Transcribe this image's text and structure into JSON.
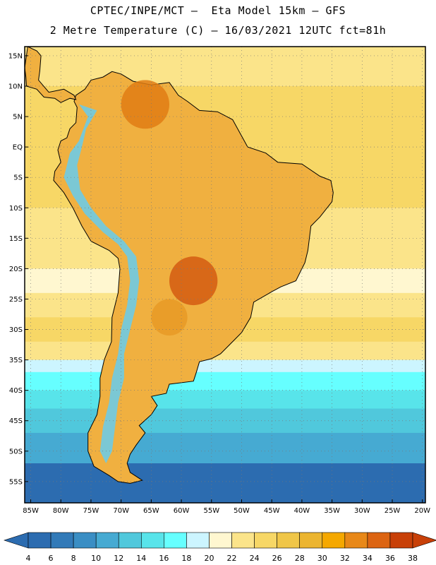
{
  "header": {
    "line1": "CPTEC/INPE/MCT –  Eta Model 15km – GFS",
    "line2": "2 Metre Temperature (C) – 16/03/2021 12UTC fct=81h"
  },
  "map": {
    "lon_range": [
      -86,
      -19.5
    ],
    "lat_range": [
      -58.5,
      16.5
    ],
    "lat_ticks": [
      {
        "value": 15,
        "label": "15N"
      },
      {
        "value": 10,
        "label": "10N"
      },
      {
        "value": 5,
        "label": "5N"
      },
      {
        "value": 0,
        "label": "EQ"
      },
      {
        "value": -5,
        "label": "5S"
      },
      {
        "value": -10,
        "label": "10S"
      },
      {
        "value": -15,
        "label": "15S"
      },
      {
        "value": -20,
        "label": "20S"
      },
      {
        "value": -25,
        "label": "25S"
      },
      {
        "value": -30,
        "label": "30S"
      },
      {
        "value": -35,
        "label": "35S"
      },
      {
        "value": -40,
        "label": "40S"
      },
      {
        "value": -45,
        "label": "45S"
      },
      {
        "value": -50,
        "label": "50S"
      },
      {
        "value": -55,
        "label": "55S"
      }
    ],
    "lon_ticks": [
      {
        "value": -85,
        "label": "85W"
      },
      {
        "value": -80,
        "label": "80W"
      },
      {
        "value": -75,
        "label": "75W"
      },
      {
        "value": -70,
        "label": "70W"
      },
      {
        "value": -65,
        "label": "65W"
      },
      {
        "value": -60,
        "label": "60W"
      },
      {
        "value": -55,
        "label": "55W"
      },
      {
        "value": -50,
        "label": "50W"
      },
      {
        "value": -45,
        "label": "45W"
      },
      {
        "value": -40,
        "label": "40W"
      },
      {
        "value": -35,
        "label": "35W"
      },
      {
        "value": -30,
        "label": "30W"
      },
      {
        "value": -25,
        "label": "25W"
      },
      {
        "value": -20,
        "label": "20W"
      }
    ],
    "ocean_bands": [
      {
        "lat_top": 16.5,
        "lat_bottom": 10,
        "color": "#fbe48a"
      },
      {
        "lat_top": 10,
        "lat_bottom": -10,
        "color": "#f7d766"
      },
      {
        "lat_top": -10,
        "lat_bottom": -20,
        "color": "#fbe48a"
      },
      {
        "lat_top": -20,
        "lat_bottom": -24,
        "color": "#fff7d0"
      },
      {
        "lat_top": -24,
        "lat_bottom": -28,
        "color": "#fbe48a"
      },
      {
        "lat_top": -28,
        "lat_bottom": -32,
        "color": "#f7d766"
      },
      {
        "lat_top": -32,
        "lat_bottom": -35,
        "color": "#fbe48a"
      },
      {
        "lat_top": -35,
        "lat_bottom": -37,
        "color": "#ccf5ff"
      },
      {
        "lat_top": -37,
        "lat_bottom": -40,
        "color": "#66ffff"
      },
      {
        "lat_top": -40,
        "lat_bottom": -43,
        "color": "#58e4ea"
      },
      {
        "lat_top": -43,
        "lat_bottom": -47,
        "color": "#50c8dc"
      },
      {
        "lat_top": -47,
        "lat_bottom": -52,
        "color": "#46aad2"
      },
      {
        "lat_top": -52,
        "lat_bottom": -58.5,
        "color": "#2c6cb0"
      }
    ],
    "land_fill": "#f0b040",
    "hot_spots": [
      {
        "lon": -58,
        "lat": -22,
        "r": 4,
        "color": "#d45c12"
      },
      {
        "lon": -66,
        "lat": 7,
        "r": 4,
        "color": "#e07c14"
      },
      {
        "lon": -62,
        "lat": -28,
        "r": 3,
        "color": "#e89a26"
      }
    ],
    "andes_strip_color": "#66ccee"
  },
  "colorbar": {
    "labels": [
      "4",
      "6",
      "8",
      "10",
      "12",
      "14",
      "16",
      "18",
      "20",
      "22",
      "24",
      "26",
      "28",
      "30",
      "32",
      "34",
      "36",
      "38"
    ],
    "colors": [
      "#2c6cb0",
      "#327ab8",
      "#3a8ec4",
      "#46aad2",
      "#50c8dc",
      "#58e4ea",
      "#66ffff",
      "#ccf5ff",
      "#fff7d0",
      "#fbe48a",
      "#f7d766",
      "#f0c648",
      "#ecb530",
      "#f5a800",
      "#e88818",
      "#dc6412",
      "#c84008"
    ],
    "left_cap_color": "#2c6cb0",
    "right_cap_color": "#c84008"
  }
}
